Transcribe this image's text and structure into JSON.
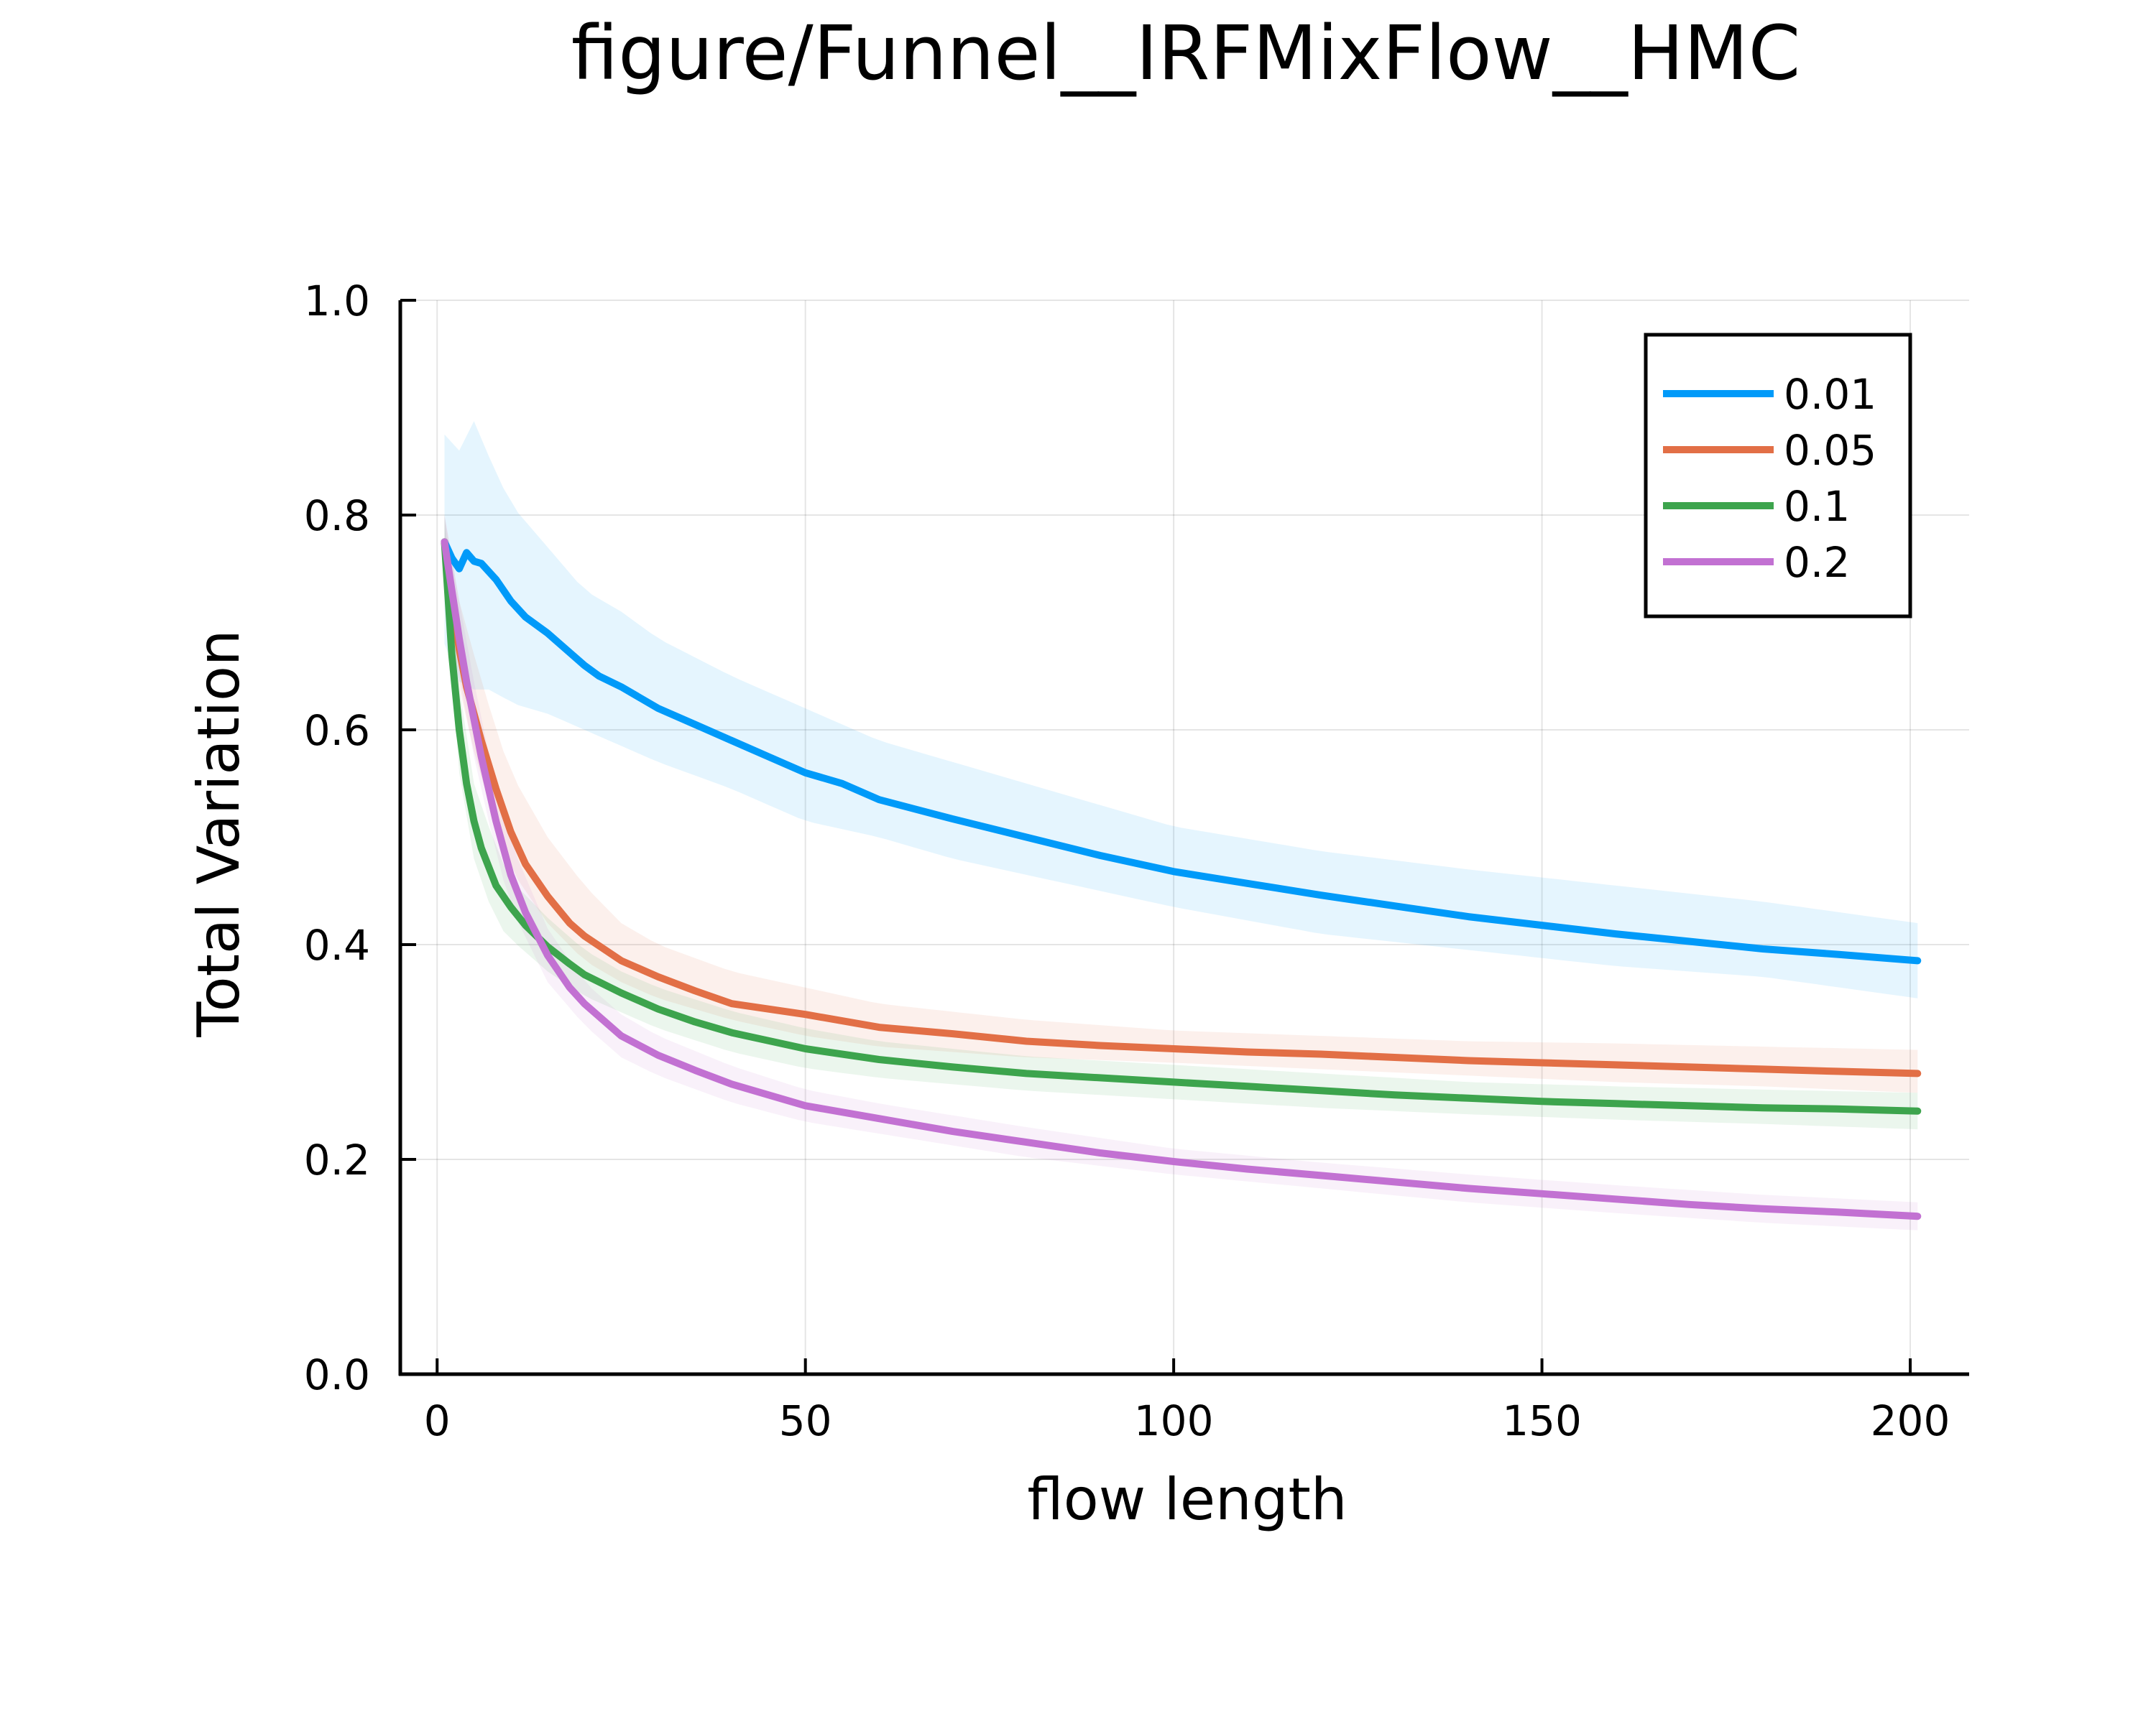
{
  "chart_data": {
    "type": "line",
    "title": "figure/Funnel__IRFMixFlow__HMC",
    "xlabel": "flow length",
    "ylabel": "Total Variation",
    "xlim": [
      -5,
      208
    ],
    "ylim": [
      0,
      1
    ],
    "xticks": [
      0,
      50,
      100,
      150,
      200
    ],
    "yticks": [
      0.0,
      0.2,
      0.4,
      0.6,
      0.8,
      1.0
    ],
    "xtick_labels": [
      "0",
      "50",
      "100",
      "150",
      "200"
    ],
    "ytick_labels": [
      "0.0",
      "0.2",
      "0.4",
      "0.6",
      "0.8",
      "1.0"
    ],
    "grid": true,
    "legend_position": "top-right",
    "band_opacity": 0.1,
    "series": [
      {
        "name": "0.01",
        "color": "#009af9",
        "points": [
          [
            1,
            0.775
          ],
          [
            2,
            0.76
          ],
          [
            3,
            0.75
          ],
          [
            4,
            0.765
          ],
          [
            5,
            0.757
          ],
          [
            6,
            0.755
          ],
          [
            8,
            0.74
          ],
          [
            10,
            0.72
          ],
          [
            12,
            0.705
          ],
          [
            15,
            0.69
          ],
          [
            18,
            0.672
          ],
          [
            20,
            0.66
          ],
          [
            22,
            0.65
          ],
          [
            25,
            0.64
          ],
          [
            30,
            0.62
          ],
          [
            35,
            0.605
          ],
          [
            40,
            0.59
          ],
          [
            45,
            0.575
          ],
          [
            50,
            0.56
          ],
          [
            55,
            0.55
          ],
          [
            60,
            0.535
          ],
          [
            70,
            0.517
          ],
          [
            80,
            0.5
          ],
          [
            90,
            0.483
          ],
          [
            100,
            0.468
          ],
          [
            110,
            0.457
          ],
          [
            120,
            0.446
          ],
          [
            130,
            0.436
          ],
          [
            140,
            0.426
          ],
          [
            150,
            0.418
          ],
          [
            160,
            0.41
          ],
          [
            170,
            0.403
          ],
          [
            180,
            0.396
          ],
          [
            190,
            0.391
          ],
          [
            201,
            0.385
          ]
        ],
        "upper": [
          [
            1,
            0.875
          ],
          [
            2,
            0.86
          ],
          [
            3,
            0.86
          ],
          [
            4,
            0.905
          ],
          [
            6,
            0.87
          ],
          [
            8,
            0.84
          ],
          [
            10,
            0.81
          ],
          [
            15,
            0.77
          ],
          [
            20,
            0.73
          ],
          [
            25,
            0.71
          ],
          [
            30,
            0.685
          ],
          [
            40,
            0.65
          ],
          [
            50,
            0.62
          ],
          [
            60,
            0.59
          ],
          [
            70,
            0.57
          ],
          [
            80,
            0.55
          ],
          [
            90,
            0.53
          ],
          [
            100,
            0.51
          ],
          [
            120,
            0.487
          ],
          [
            140,
            0.47
          ],
          [
            160,
            0.455
          ],
          [
            180,
            0.44
          ],
          [
            201,
            0.42
          ]
        ],
        "lower": [
          [
            1,
            0.68
          ],
          [
            2,
            0.67
          ],
          [
            3,
            0.645
          ],
          [
            4,
            0.635
          ],
          [
            6,
            0.64
          ],
          [
            8,
            0.635
          ],
          [
            10,
            0.625
          ],
          [
            15,
            0.615
          ],
          [
            20,
            0.6
          ],
          [
            25,
            0.585
          ],
          [
            30,
            0.57
          ],
          [
            40,
            0.545
          ],
          [
            50,
            0.515
          ],
          [
            60,
            0.5
          ],
          [
            70,
            0.48
          ],
          [
            80,
            0.465
          ],
          [
            90,
            0.45
          ],
          [
            100,
            0.435
          ],
          [
            120,
            0.41
          ],
          [
            140,
            0.395
          ],
          [
            160,
            0.38
          ],
          [
            180,
            0.37
          ],
          [
            201,
            0.35
          ]
        ]
      },
      {
        "name": "0.05",
        "color": "#e26f46",
        "points": [
          [
            1,
            0.775
          ],
          [
            2,
            0.72
          ],
          [
            3,
            0.675
          ],
          [
            4,
            0.64
          ],
          [
            5,
            0.615
          ],
          [
            6,
            0.59
          ],
          [
            8,
            0.545
          ],
          [
            10,
            0.505
          ],
          [
            12,
            0.475
          ],
          [
            15,
            0.445
          ],
          [
            18,
            0.42
          ],
          [
            20,
            0.408
          ],
          [
            25,
            0.385
          ],
          [
            30,
            0.37
          ],
          [
            35,
            0.357
          ],
          [
            40,
            0.345
          ],
          [
            50,
            0.335
          ],
          [
            60,
            0.323
          ],
          [
            70,
            0.317
          ],
          [
            80,
            0.31
          ],
          [
            90,
            0.306
          ],
          [
            100,
            0.303
          ],
          [
            110,
            0.3
          ],
          [
            120,
            0.298
          ],
          [
            130,
            0.295
          ],
          [
            140,
            0.292
          ],
          [
            150,
            0.29
          ],
          [
            160,
            0.288
          ],
          [
            170,
            0.286
          ],
          [
            180,
            0.284
          ],
          [
            190,
            0.282
          ],
          [
            201,
            0.28
          ]
        ],
        "upper": [
          [
            1,
            0.8
          ],
          [
            3,
            0.72
          ],
          [
            5,
            0.67
          ],
          [
            8,
            0.6
          ],
          [
            10,
            0.56
          ],
          [
            15,
            0.5
          ],
          [
            20,
            0.455
          ],
          [
            25,
            0.42
          ],
          [
            30,
            0.4
          ],
          [
            40,
            0.375
          ],
          [
            50,
            0.36
          ],
          [
            60,
            0.345
          ],
          [
            80,
            0.33
          ],
          [
            100,
            0.32
          ],
          [
            120,
            0.315
          ],
          [
            140,
            0.31
          ],
          [
            160,
            0.308
          ],
          [
            180,
            0.305
          ],
          [
            201,
            0.302
          ]
        ],
        "lower": [
          [
            1,
            0.75
          ],
          [
            3,
            0.64
          ],
          [
            5,
            0.58
          ],
          [
            8,
            0.51
          ],
          [
            10,
            0.47
          ],
          [
            15,
            0.42
          ],
          [
            20,
            0.385
          ],
          [
            25,
            0.365
          ],
          [
            30,
            0.35
          ],
          [
            40,
            0.33
          ],
          [
            50,
            0.315
          ],
          [
            60,
            0.305
          ],
          [
            80,
            0.295
          ],
          [
            100,
            0.29
          ],
          [
            120,
            0.284
          ],
          [
            140,
            0.278
          ],
          [
            160,
            0.272
          ],
          [
            180,
            0.268
          ],
          [
            201,
            0.262
          ]
        ]
      },
      {
        "name": "0.1",
        "color": "#3da44d",
        "points": [
          [
            1,
            0.775
          ],
          [
            2,
            0.67
          ],
          [
            3,
            0.6
          ],
          [
            4,
            0.55
          ],
          [
            5,
            0.515
          ],
          [
            6,
            0.49
          ],
          [
            8,
            0.455
          ],
          [
            10,
            0.435
          ],
          [
            12,
            0.418
          ],
          [
            15,
            0.398
          ],
          [
            18,
            0.382
          ],
          [
            20,
            0.372
          ],
          [
            25,
            0.355
          ],
          [
            30,
            0.34
          ],
          [
            35,
            0.328
          ],
          [
            40,
            0.318
          ],
          [
            50,
            0.303
          ],
          [
            60,
            0.293
          ],
          [
            70,
            0.286
          ],
          [
            80,
            0.28
          ],
          [
            90,
            0.276
          ],
          [
            100,
            0.272
          ],
          [
            110,
            0.268
          ],
          [
            120,
            0.264
          ],
          [
            130,
            0.26
          ],
          [
            140,
            0.257
          ],
          [
            150,
            0.254
          ],
          [
            160,
            0.252
          ],
          [
            170,
            0.25
          ],
          [
            180,
            0.248
          ],
          [
            190,
            0.247
          ],
          [
            201,
            0.245
          ]
        ],
        "upper": [
          [
            1,
            0.8
          ],
          [
            3,
            0.64
          ],
          [
            5,
            0.55
          ],
          [
            8,
            0.49
          ],
          [
            10,
            0.46
          ],
          [
            15,
            0.425
          ],
          [
            20,
            0.395
          ],
          [
            25,
            0.375
          ],
          [
            30,
            0.36
          ],
          [
            40,
            0.338
          ],
          [
            50,
            0.322
          ],
          [
            60,
            0.31
          ],
          [
            80,
            0.296
          ],
          [
            100,
            0.288
          ],
          [
            120,
            0.28
          ],
          [
            140,
            0.272
          ],
          [
            160,
            0.268
          ],
          [
            180,
            0.265
          ],
          [
            201,
            0.262
          ]
        ],
        "lower": [
          [
            1,
            0.75
          ],
          [
            3,
            0.56
          ],
          [
            5,
            0.48
          ],
          [
            8,
            0.42
          ],
          [
            10,
            0.405
          ],
          [
            15,
            0.375
          ],
          [
            20,
            0.352
          ],
          [
            25,
            0.337
          ],
          [
            30,
            0.322
          ],
          [
            40,
            0.3
          ],
          [
            50,
            0.285
          ],
          [
            60,
            0.276
          ],
          [
            80,
            0.264
          ],
          [
            100,
            0.256
          ],
          [
            120,
            0.248
          ],
          [
            140,
            0.242
          ],
          [
            160,
            0.237
          ],
          [
            180,
            0.233
          ],
          [
            201,
            0.228
          ]
        ]
      },
      {
        "name": "0.2",
        "color": "#c271d2",
        "points": [
          [
            1,
            0.775
          ],
          [
            2,
            0.73
          ],
          [
            3,
            0.685
          ],
          [
            4,
            0.645
          ],
          [
            5,
            0.61
          ],
          [
            6,
            0.575
          ],
          [
            8,
            0.515
          ],
          [
            10,
            0.465
          ],
          [
            12,
            0.43
          ],
          [
            15,
            0.39
          ],
          [
            18,
            0.36
          ],
          [
            20,
            0.345
          ],
          [
            25,
            0.315
          ],
          [
            30,
            0.297
          ],
          [
            35,
            0.283
          ],
          [
            40,
            0.27
          ],
          [
            50,
            0.25
          ],
          [
            60,
            0.238
          ],
          [
            70,
            0.226
          ],
          [
            80,
            0.216
          ],
          [
            90,
            0.206
          ],
          [
            100,
            0.198
          ],
          [
            110,
            0.191
          ],
          [
            120,
            0.185
          ],
          [
            130,
            0.179
          ],
          [
            140,
            0.173
          ],
          [
            150,
            0.168
          ],
          [
            160,
            0.163
          ],
          [
            170,
            0.158
          ],
          [
            180,
            0.154
          ],
          [
            190,
            0.151
          ],
          [
            201,
            0.147
          ]
        ],
        "upper": [
          [
            1,
            0.8
          ],
          [
            3,
            0.72
          ],
          [
            5,
            0.645
          ],
          [
            8,
            0.545
          ],
          [
            10,
            0.495
          ],
          [
            15,
            0.415
          ],
          [
            20,
            0.365
          ],
          [
            25,
            0.335
          ],
          [
            30,
            0.315
          ],
          [
            40,
            0.287
          ],
          [
            50,
            0.265
          ],
          [
            60,
            0.252
          ],
          [
            80,
            0.23
          ],
          [
            100,
            0.21
          ],
          [
            120,
            0.197
          ],
          [
            140,
            0.186
          ],
          [
            160,
            0.176
          ],
          [
            180,
            0.167
          ],
          [
            201,
            0.16
          ]
        ],
        "lower": [
          [
            1,
            0.75
          ],
          [
            3,
            0.65
          ],
          [
            5,
            0.575
          ],
          [
            8,
            0.485
          ],
          [
            10,
            0.435
          ],
          [
            15,
            0.365
          ],
          [
            20,
            0.325
          ],
          [
            25,
            0.295
          ],
          [
            30,
            0.278
          ],
          [
            40,
            0.253
          ],
          [
            50,
            0.235
          ],
          [
            60,
            0.224
          ],
          [
            80,
            0.202
          ],
          [
            100,
            0.186
          ],
          [
            120,
            0.173
          ],
          [
            140,
            0.16
          ],
          [
            160,
            0.15
          ],
          [
            180,
            0.141
          ],
          [
            201,
            0.134
          ]
        ]
      }
    ]
  }
}
